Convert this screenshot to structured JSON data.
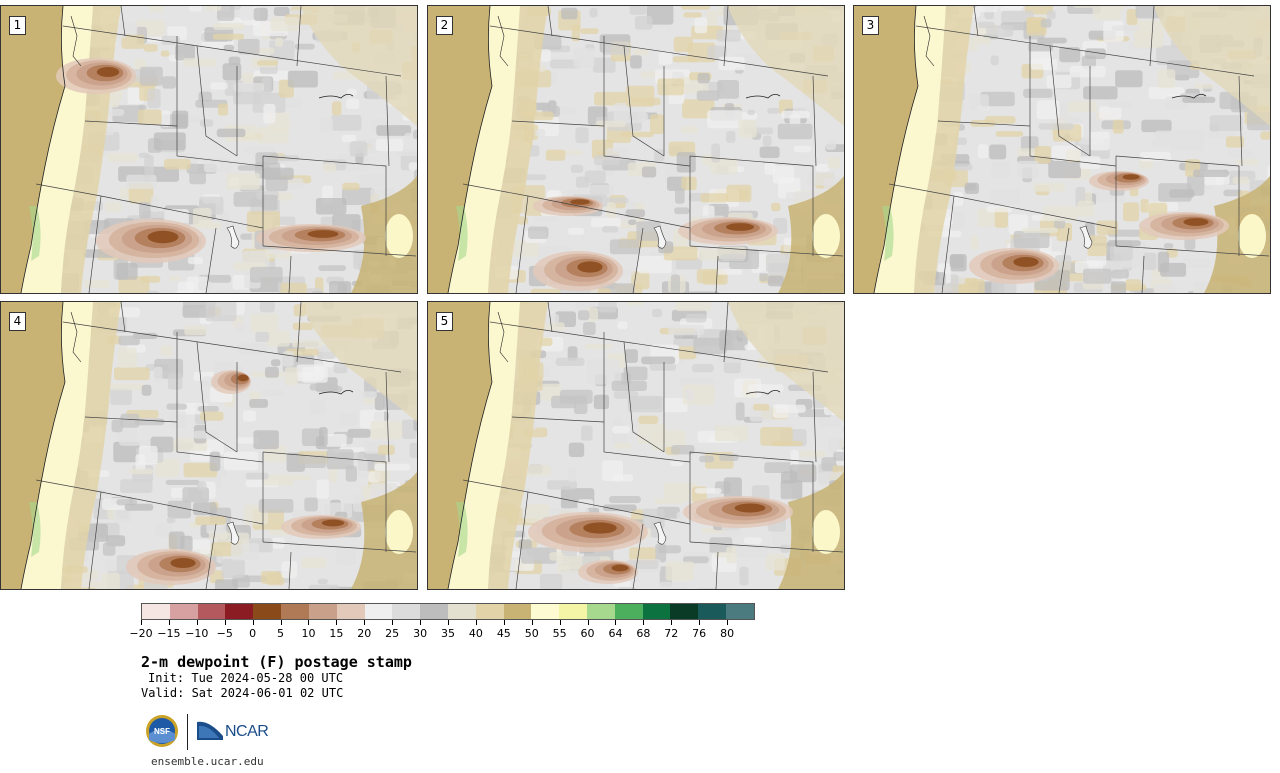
{
  "product": {
    "title": "2-m dewpoint (F) postage stamp",
    "init": "Init: Tue 2024-05-28 00 UTC",
    "valid": "Valid: Sat 2024-06-01 02 UTC",
    "website": "ensemble.ucar.edu",
    "ncar_text": "NCAR",
    "nsf_text": "NSF"
  },
  "panels": [
    {
      "label": "1"
    },
    {
      "label": "2"
    },
    {
      "label": "3"
    },
    {
      "label": "4"
    },
    {
      "label": "5"
    }
  ],
  "colorbar": {
    "ticks": [
      "−20",
      "−15",
      "−10",
      "−5",
      "0",
      "5",
      "10",
      "15",
      "20",
      "25",
      "30",
      "35",
      "40",
      "45",
      "50",
      "55",
      "60",
      "64",
      "68",
      "72",
      "76",
      "80"
    ],
    "colors": [
      "#f5e6e4",
      "#d7a1a1",
      "#b45a5f",
      "#8c1c24",
      "#8a4a1a",
      "#b07a56",
      "#c9a08a",
      "#e2c9ba",
      "#efefef",
      "#dcdcdc",
      "#bdbdbd",
      "#e3e0d0",
      "#e2d3a8",
      "#c8b374",
      "#fdfbd2",
      "#f5f5a8",
      "#a6d98e",
      "#4caf5e",
      "#0b7240",
      "#0a3b26",
      "#1a5a5a",
      "#4b7b7e"
    ]
  }
}
